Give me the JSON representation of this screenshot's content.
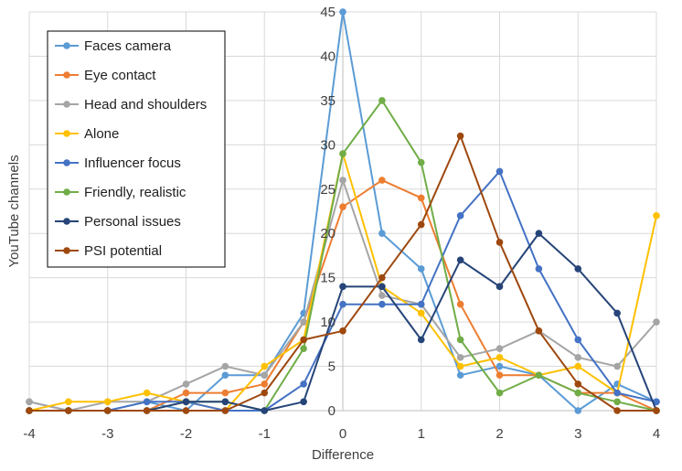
{
  "chart_data": {
    "type": "line",
    "title": "",
    "xlabel": "Difference",
    "ylabel": "YouTube channels",
    "xlim": [
      -4,
      4
    ],
    "ylim": [
      0,
      45
    ],
    "x_ticks": [
      -4,
      -3,
      -2,
      -1,
      0,
      1,
      2,
      3,
      4
    ],
    "y_ticks": [
      0,
      5,
      10,
      15,
      20,
      25,
      30,
      35,
      40,
      45
    ],
    "grid": "major both axes",
    "legend_position": "top-left",
    "x": [
      -4,
      -3.5,
      -3,
      -2.5,
      -2,
      -1.5,
      -1,
      -0.5,
      0,
      0.5,
      1,
      1.5,
      2,
      2.5,
      3,
      3.5,
      4
    ],
    "series": [
      {
        "name": "Faces camera",
        "color": "#5B9BD5",
        "values": [
          1,
          0,
          0,
          1,
          0,
          4,
          4,
          11,
          45,
          20,
          16,
          4,
          5,
          4,
          0,
          3,
          1
        ]
      },
      {
        "name": "Eye contact",
        "color": "#ED7D31",
        "values": [
          0,
          0,
          0,
          0,
          2,
          2,
          3,
          10,
          23,
          26,
          24,
          12,
          4,
          4,
          2,
          2,
          0
        ]
      },
      {
        "name": "Head and shoulders",
        "color": "#A5A5A5",
        "values": [
          1,
          0,
          1,
          1,
          3,
          5,
          4,
          10,
          26,
          13,
          12,
          6,
          7,
          9,
          6,
          5,
          10
        ]
      },
      {
        "name": "Alone",
        "color": "#FFC000",
        "values": [
          0,
          1,
          1,
          2,
          1,
          0,
          5,
          8,
          29,
          14,
          11,
          5,
          6,
          4,
          5,
          2,
          22
        ]
      },
      {
        "name": "Influencer focus",
        "color": "#4472C4",
        "values": [
          0,
          0,
          0,
          1,
          1,
          0,
          0,
          3,
          12,
          12,
          12,
          22,
          27,
          16,
          8,
          2,
          1
        ]
      },
      {
        "name": "Friendly, realistic",
        "color": "#70AD47",
        "values": [
          0,
          0,
          0,
          0,
          1,
          1,
          0,
          7,
          29,
          35,
          28,
          8,
          2,
          4,
          2,
          1,
          0
        ]
      },
      {
        "name": "Personal issues",
        "color": "#264478",
        "values": [
          0,
          0,
          0,
          0,
          1,
          1,
          0,
          1,
          14,
          14,
          8,
          17,
          14,
          20,
          16,
          11,
          0
        ]
      },
      {
        "name": "PSI potential",
        "color": "#9E480E",
        "values": [
          0,
          0,
          0,
          0,
          0,
          0,
          2,
          8,
          9,
          15,
          21,
          31,
          19,
          9,
          3,
          0,
          0
        ]
      }
    ]
  }
}
